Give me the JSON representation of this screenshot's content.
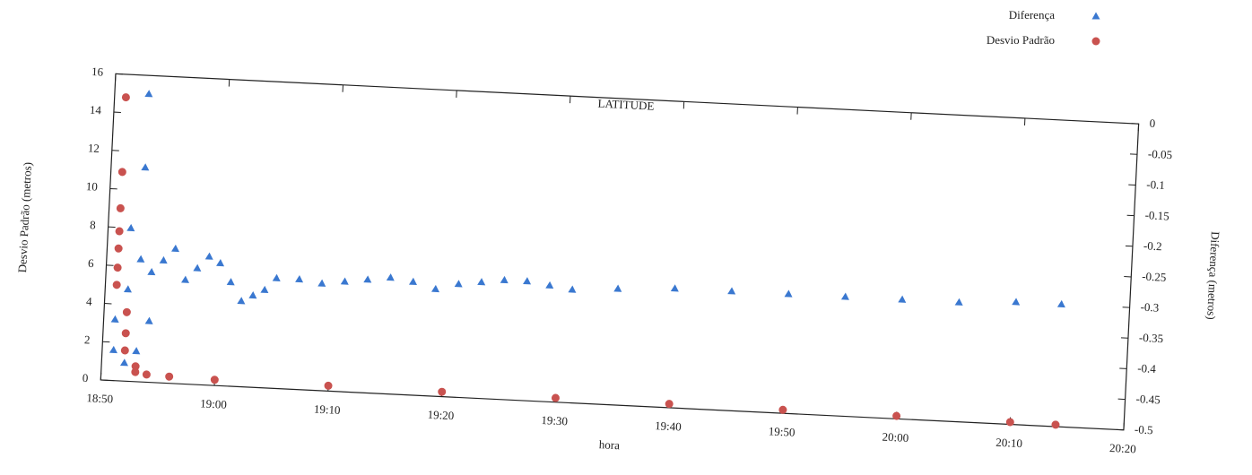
{
  "chart_data": {
    "type": "scatter",
    "title": "LATITUDE",
    "xlabel": "hora",
    "ylabel": "Desvio Padrão (metros)",
    "y2label": "Diferença (metros)",
    "xlim": [
      "18:50",
      "20:20"
    ],
    "xticks": [
      "18:50",
      "19:00",
      "19:10",
      "19:20",
      "19:30",
      "19:40",
      "19:50",
      "20:00",
      "20:10",
      "20:20"
    ],
    "ylim": [
      0,
      16
    ],
    "yticks": [
      0,
      2,
      4,
      6,
      8,
      10,
      12,
      14,
      16
    ],
    "y2lim": [
      -0.5,
      0
    ],
    "y2ticks": [
      0,
      -0.05,
      -0.1,
      -0.15,
      -0.2,
      -0.25,
      -0.3,
      -0.35,
      -0.4,
      -0.45,
      -0.5
    ],
    "legend": "top-right",
    "series": [
      {
        "name": "Diferença",
        "color": "#3a78d0",
        "marker": "triangle",
        "axis": "y2",
        "x": [
          "18:51",
          "18:51",
          "18:52",
          "18:52",
          "18:52",
          "18:53",
          "18:53",
          "18:53",
          "18:53",
          "18:54",
          "18:54",
          "18:55",
          "18:56",
          "18:57",
          "18:58",
          "18:59",
          "19:00",
          "19:01",
          "19:02",
          "19:03",
          "19:04",
          "19:05",
          "19:07",
          "19:09",
          "19:11",
          "19:13",
          "19:15",
          "19:17",
          "19:19",
          "19:21",
          "19:23",
          "19:25",
          "19:27",
          "19:29",
          "19:31",
          "19:35",
          "19:40",
          "19:45",
          "19:50",
          "19:55",
          "20:00",
          "20:05",
          "20:10",
          "20:14"
        ],
        "values": [
          -0.45,
          -0.4,
          -0.35,
          -0.25,
          -0.47,
          -0.03,
          -0.15,
          -0.45,
          -0.3,
          -0.32,
          -0.4,
          -0.3,
          -0.28,
          -0.33,
          -0.31,
          -0.29,
          -0.3,
          -0.33,
          -0.36,
          -0.35,
          -0.34,
          -0.32,
          -0.32,
          -0.325,
          -0.32,
          -0.315,
          -0.31,
          -0.315,
          -0.325,
          -0.315,
          -0.31,
          -0.305,
          -0.305,
          -0.31,
          -0.315,
          -0.31,
          -0.305,
          -0.305,
          -0.305,
          -0.305,
          -0.305,
          -0.305,
          -0.3,
          -0.3
        ]
      },
      {
        "name": "Desvio Padrão",
        "color": "#c9524f",
        "marker": "circle",
        "axis": "y",
        "x": [
          "18:51",
          "18:51",
          "18:51",
          "18:51",
          "18:51",
          "18:51",
          "18:51",
          "18:52",
          "18:52",
          "18:52",
          "18:53",
          "18:53",
          "18:54",
          "18:56",
          "19:00",
          "19:10",
          "19:20",
          "19:30",
          "19:40",
          "19:50",
          "20:00",
          "20:10",
          "20:14"
        ],
        "values": [
          14.8,
          10.9,
          9.0,
          7.8,
          6.9,
          5.9,
          5.0,
          3.6,
          2.5,
          1.6,
          0.8,
          0.5,
          0.4,
          0.35,
          0.3,
          0.28,
          0.25,
          0.22,
          0.2,
          0.18,
          0.15,
          0.12,
          0.1
        ]
      }
    ]
  }
}
